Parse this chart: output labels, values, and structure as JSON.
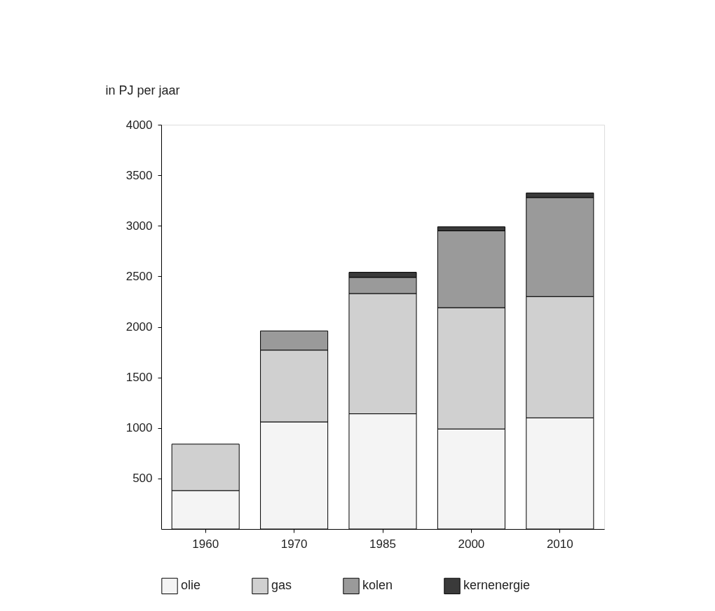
{
  "chart_data": {
    "type": "bar",
    "stacked": true,
    "ylabel": "in PJ per jaar",
    "categories": [
      "1960",
      "1970",
      "1985",
      "2000",
      "2010"
    ],
    "series": [
      {
        "name": "olie",
        "color": "#f4f4f4",
        "values": [
          380,
          1060,
          1140,
          990,
          1100
        ]
      },
      {
        "name": "gas",
        "color": "#d0d0d0",
        "values": [
          460,
          710,
          1190,
          1200,
          1200
        ]
      },
      {
        "name": "kolen",
        "color": "#9a9a9a",
        "values": [
          null,
          190,
          160,
          760,
          980
        ]
      },
      {
        "name": "kernenergie",
        "color": "#3a3a3a",
        "values": [
          null,
          null,
          50,
          40,
          45
        ]
      }
    ],
    "ylim": [
      0,
      4000
    ],
    "yticks": [
      500,
      1000,
      1500,
      2000,
      2500,
      3000,
      3500,
      4000
    ],
    "grid": false,
    "legend": "bottom"
  }
}
